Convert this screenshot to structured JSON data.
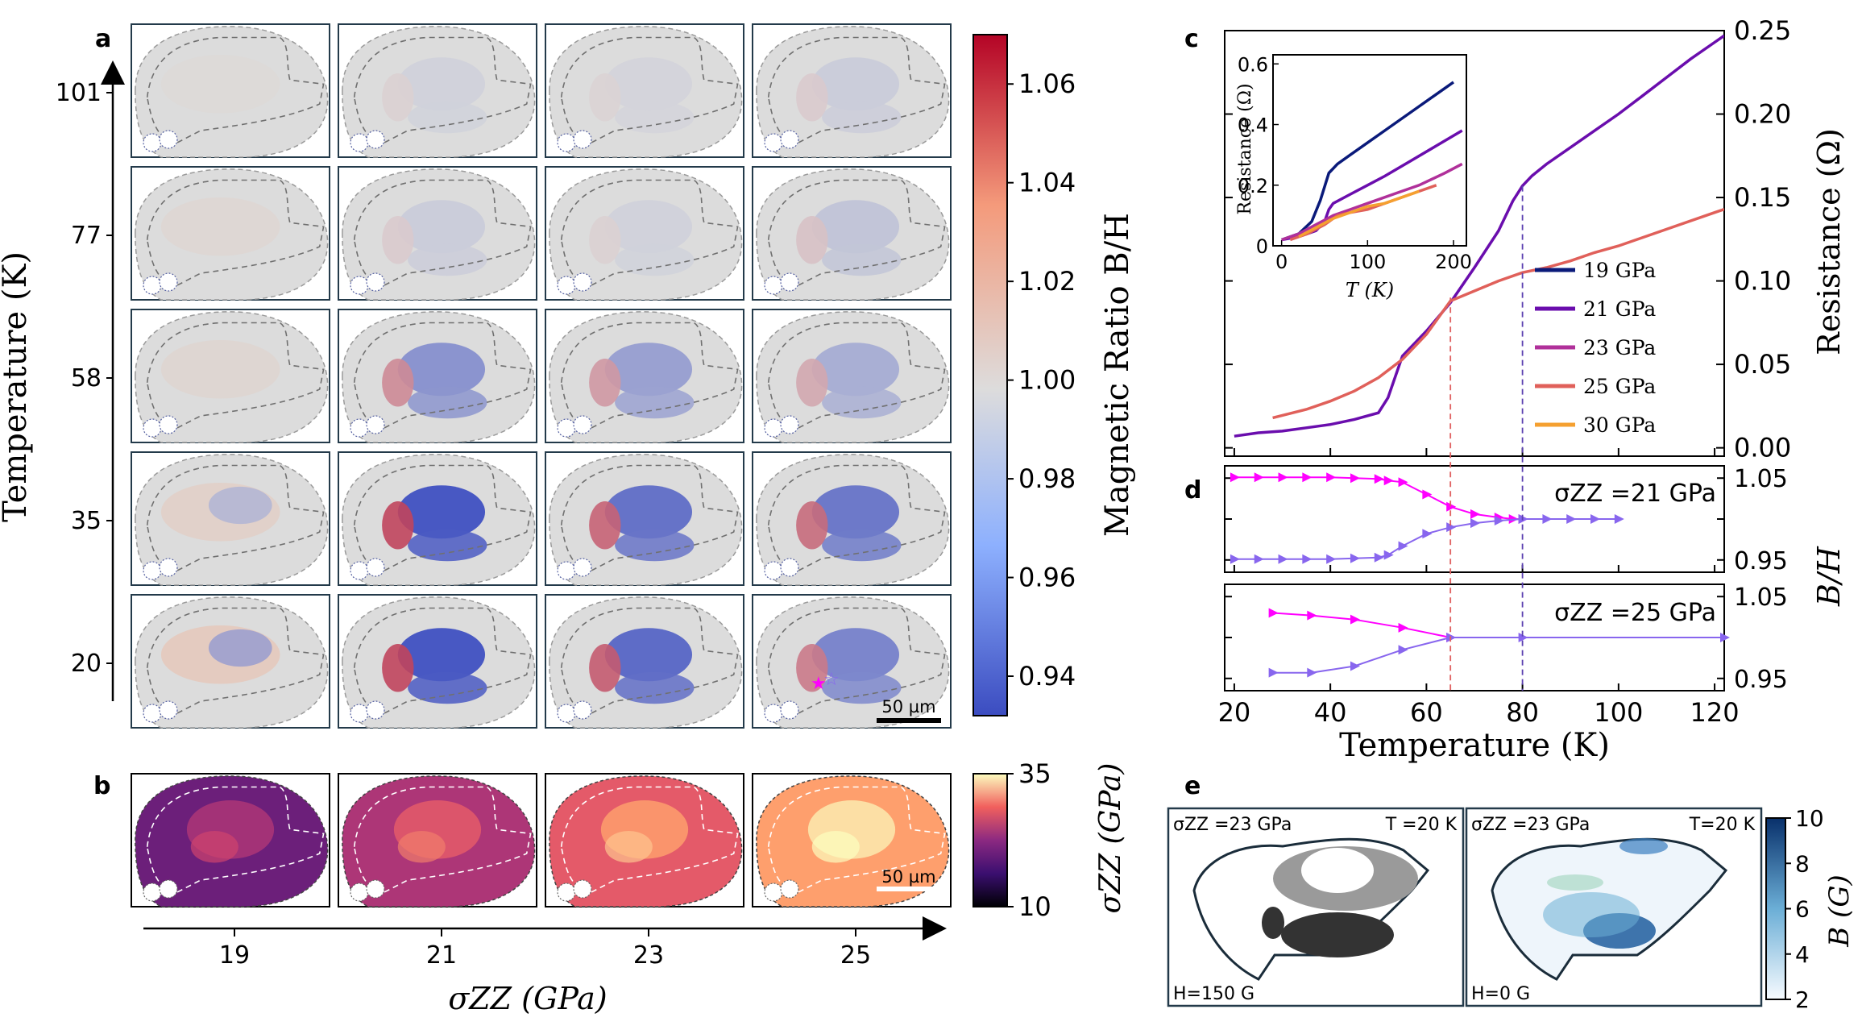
{
  "colors": {
    "cmap_low": "#3b4cc0",
    "cmap_mid": "#dcdcdc",
    "cmap_high": "#b40426",
    "pink_series": "#ff00ff",
    "violet_series": "#8866ee",
    "frame": "#233a4a",
    "dashed_red": "#e06060",
    "dashed_violet": "#5a3fb0"
  },
  "panel_a": {
    "letter": "a",
    "ylabel": "Temperature (K)",
    "temperatures": [
      "101",
      "77",
      "58",
      "35",
      "20"
    ],
    "scalebar_label": "50 µm",
    "intensity": [
      [
        0.05,
        -0.08,
        -0.06,
        -0.12
      ],
      [
        0.1,
        -0.12,
        -0.08,
        -0.18
      ],
      [
        0.12,
        -0.55,
        -0.45,
        -0.35
      ],
      [
        0.22,
        -1.0,
        -0.8,
        -0.75
      ],
      [
        0.35,
        -1.0,
        -0.85,
        -0.65
      ]
    ]
  },
  "colorbar_a": {
    "label": "Magnetic Ratio B/H",
    "ticks": [
      "1.06",
      "1.04",
      "1.02",
      "1.00",
      "0.98",
      "0.96",
      "0.94"
    ],
    "min": 0.932,
    "max": 1.07
  },
  "panel_b": {
    "letter": "b",
    "xticks": [
      "19",
      "21",
      "23",
      "25"
    ],
    "xlabel": "σZZ (GPa)",
    "scalebar_label": "50 µm",
    "stress": [
      18,
      22,
      26,
      30
    ]
  },
  "colorbar_b": {
    "label": "σZZ (GPa)",
    "ticks": [
      "35",
      "10"
    ],
    "min": 10,
    "max": 35
  },
  "chart_data": [
    {
      "panel": "c",
      "type": "line",
      "title": "",
      "xlabel": "Temperature (K)",
      "ylabel": "Resistance (Ω)",
      "xlim": [
        18,
        122
      ],
      "ylim": [
        -0.005,
        0.25
      ],
      "xticks": [
        "20",
        "40",
        "60",
        "80",
        "100",
        "120"
      ],
      "yticks": [
        "0.00",
        "0.05",
        "0.10",
        "0.15",
        "0.20",
        "0.25"
      ],
      "vlines": [
        65,
        80
      ],
      "series": [
        {
          "name": "21 GPa",
          "color": "#6a0dad",
          "x": [
            20,
            25,
            30,
            35,
            40,
            45,
            50,
            52,
            55,
            60,
            65,
            70,
            75,
            78,
            80,
            82,
            85,
            90,
            95,
            100,
            105,
            110,
            115,
            120,
            122
          ],
          "y": [
            0.007,
            0.009,
            0.01,
            0.012,
            0.014,
            0.017,
            0.021,
            0.03,
            0.055,
            0.07,
            0.087,
            0.108,
            0.13,
            0.148,
            0.157,
            0.163,
            0.17,
            0.18,
            0.19,
            0.2,
            0.211,
            0.222,
            0.233,
            0.243,
            0.247
          ]
        },
        {
          "name": "25 GPa",
          "color": "#e0605a",
          "x": [
            28,
            35,
            40,
            45,
            50,
            55,
            60,
            65,
            70,
            75,
            80,
            85,
            90,
            95,
            100,
            110,
            120,
            122
          ],
          "y": [
            0.018,
            0.023,
            0.028,
            0.034,
            0.042,
            0.053,
            0.068,
            0.088,
            0.094,
            0.1,
            0.105,
            0.108,
            0.112,
            0.117,
            0.121,
            0.131,
            0.141,
            0.143
          ]
        }
      ],
      "legend": [
        {
          "name": "19 GPa",
          "color": "#0a1a7a"
        },
        {
          "name": "21 GPa",
          "color": "#6a0dad"
        },
        {
          "name": "23 GPa",
          "color": "#b0309a"
        },
        {
          "name": "25 GPa",
          "color": "#e0605a"
        },
        {
          "name": "30 GPa",
          "color": "#f5a030"
        }
      ]
    },
    {
      "panel": "c-inset",
      "type": "line",
      "xlabel": "T (K)",
      "ylabel": "Resistance (Ω)",
      "xlim": [
        -10,
        215
      ],
      "ylim": [
        0,
        0.63
      ],
      "xticks": [
        "0",
        "100",
        "200"
      ],
      "yticks": [
        "0",
        "0.2",
        "0.4",
        "0.6"
      ],
      "series": [
        {
          "name": "19 GPa",
          "color": "#0a1a7a",
          "x": [
            0,
            20,
            35,
            45,
            55,
            65,
            80,
            100,
            120,
            140,
            160,
            180,
            200
          ],
          "y": [
            0.02,
            0.04,
            0.08,
            0.15,
            0.24,
            0.27,
            0.3,
            0.34,
            0.38,
            0.42,
            0.46,
            0.5,
            0.54
          ]
        },
        {
          "name": "21 GPa",
          "color": "#6a0dad",
          "x": [
            0,
            20,
            40,
            50,
            55,
            60,
            80,
            100,
            120,
            150,
            180,
            210
          ],
          "y": [
            0.02,
            0.03,
            0.05,
            0.08,
            0.12,
            0.14,
            0.17,
            0.2,
            0.23,
            0.28,
            0.33,
            0.38
          ]
        },
        {
          "name": "23 GPa",
          "color": "#b0309a",
          "x": [
            0,
            20,
            40,
            60,
            80,
            100,
            130,
            160,
            190,
            210
          ],
          "y": [
            0.02,
            0.04,
            0.07,
            0.1,
            0.12,
            0.14,
            0.17,
            0.2,
            0.24,
            0.27
          ]
        },
        {
          "name": "25 GPa",
          "color": "#e0605a",
          "x": [
            10,
            30,
            50,
            65,
            80,
            100,
            120,
            150,
            180
          ],
          "y": [
            0.02,
            0.04,
            0.07,
            0.1,
            0.11,
            0.12,
            0.14,
            0.17,
            0.2
          ]
        },
        {
          "name": "30 GPa",
          "color": "#f5a030",
          "x": [
            20,
            40,
            60,
            80,
            100,
            120,
            140,
            160
          ],
          "y": [
            0.03,
            0.06,
            0.09,
            0.11,
            0.13,
            0.14,
            0.16,
            0.18
          ]
        }
      ]
    },
    {
      "panel": "d-top",
      "type": "line",
      "annotation": "σZZ =21 GPa",
      "ylabel": "B/H",
      "xlim": [
        18,
        122
      ],
      "ylim": [
        0.935,
        1.065
      ],
      "yticks": [
        "1.05",
        "0.95"
      ],
      "series": [
        {
          "name": "pink",
          "color": "#ff00ff",
          "marker": "triangle-right",
          "x": [
            20,
            25,
            30,
            35,
            40,
            45,
            50,
            52,
            55,
            60,
            65,
            70,
            75,
            78,
            80
          ],
          "y": [
            1.051,
            1.051,
            1.051,
            1.051,
            1.051,
            1.05,
            1.049,
            1.047,
            1.045,
            1.03,
            1.015,
            1.006,
            1.002,
            1.0,
            1.0
          ]
        },
        {
          "name": "violet",
          "color": "#8866ee",
          "marker": "triangle-right",
          "x": [
            20,
            25,
            30,
            35,
            40,
            45,
            50,
            52,
            55,
            60,
            65,
            70,
            75,
            80,
            85,
            90,
            95,
            100
          ],
          "y": [
            0.951,
            0.951,
            0.951,
            0.951,
            0.951,
            0.952,
            0.953,
            0.956,
            0.967,
            0.982,
            0.99,
            0.995,
            0.998,
            1.0,
            1.0,
            1.0,
            1.0,
            1.0
          ]
        }
      ]
    },
    {
      "panel": "d-bottom",
      "type": "line",
      "annotation": "σZZ =25 GPa",
      "ylabel": "B/H",
      "xlim": [
        18,
        122
      ],
      "ylim": [
        0.935,
        1.065
      ],
      "yticks": [
        "1.05",
        "0.95"
      ],
      "xticks": [
        "20",
        "40",
        "60",
        "80",
        "100",
        "120"
      ],
      "xlabel": "Temperature (K)",
      "series": [
        {
          "name": "pink",
          "color": "#ff00ff",
          "marker": "triangle-right",
          "x": [
            28,
            36,
            45,
            55,
            65
          ],
          "y": [
            1.03,
            1.027,
            1.022,
            1.012,
            1.0
          ]
        },
        {
          "name": "violet",
          "color": "#8866ee",
          "marker": "triangle-right",
          "x": [
            28,
            36,
            45,
            55,
            65,
            80,
            122
          ],
          "y": [
            0.957,
            0.957,
            0.965,
            0.985,
            1.0,
            1.0,
            1.0
          ]
        }
      ]
    }
  ],
  "panel_c": {
    "letter": "c"
  },
  "panel_d": {
    "letter": "d",
    "ylabel": "B/H"
  },
  "panel_e": {
    "letter": "e",
    "left_stress": "σZZ =23 GPa",
    "left_temp": "T =20 K",
    "left_field": "H=150 G",
    "right_stress": "σZZ =23 GPa",
    "right_temp": "T=20 K",
    "right_field": "H=0 G"
  },
  "colorbar_e": {
    "label": "B (G)",
    "ticks": [
      "10",
      "8",
      "6",
      "4",
      "2"
    ],
    "min": 2,
    "max": 10
  }
}
